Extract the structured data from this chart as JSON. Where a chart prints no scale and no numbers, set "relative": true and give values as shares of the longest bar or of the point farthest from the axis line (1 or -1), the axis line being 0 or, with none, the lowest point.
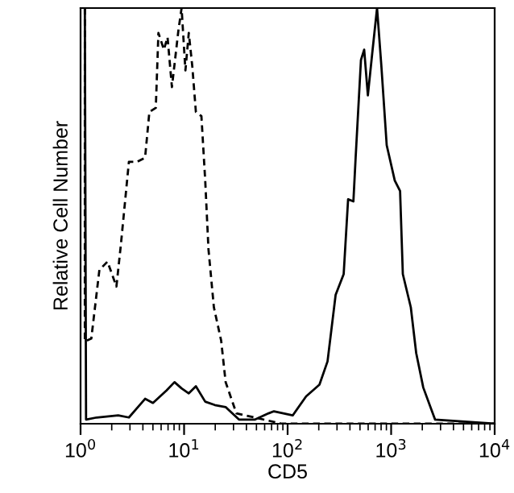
{
  "chart_data": {
    "type": "line",
    "xlabel": "CD5",
    "ylabel": "Relative Cell Number",
    "relative": true,
    "log": "x",
    "grid": false,
    "marker": "none",
    "xlim": [
      1,
      10000
    ],
    "xticks": [
      {
        "value": 1,
        "label": "10$^{0}$"
      },
      {
        "value": 10,
        "label": "10$^{1}$"
      },
      {
        "value": 100,
        "label": "10$^{2}$"
      },
      {
        "value": 1000,
        "label": "10$^{3}$"
      },
      {
        "value": 10000,
        "label": "10$^{4}$"
      }
    ],
    "series": [
      {
        "color": "#000000",
        "line_style": "dashed",
        "x": [
          1.1,
          1.1,
          1.27,
          1.52,
          1.82,
          2.22,
          2.45,
          2.93,
          3.51,
          4.2,
          4.62,
          5.33,
          5.65,
          6.38,
          6.92,
          7.63,
          8.8,
          9.46,
          10.3,
          11.1,
          12.0,
          13.0,
          14.7,
          16.0,
          17.2,
          19.4,
          22.8,
          25.2,
          32.0,
          88,
          10000
        ],
        "values": [
          1.0,
          0.198,
          0.205,
          0.37,
          0.39,
          0.33,
          0.43,
          0.63,
          0.63,
          0.64,
          0.75,
          0.76,
          0.94,
          0.9,
          0.93,
          0.81,
          0.945,
          1.0,
          0.85,
          0.94,
          0.86,
          0.75,
          0.74,
          0.585,
          0.42,
          0.28,
          0.2,
          0.1,
          0.025,
          0,
          0
        ]
      },
      {
        "color": "#000000",
        "line_style": "solid",
        "x": [
          1.1,
          1.13,
          1.43,
          2.31,
          2.93,
          4.2,
          5.0,
          6.76,
          8.08,
          9.46,
          11.1,
          13.0,
          16.0,
          19.8,
          25.2,
          33.9,
          48.5,
          65.5,
          73.8,
          112,
          151,
          203,
          243,
          291,
          348,
          384,
          432,
          454,
          511,
          549,
          596,
          656,
          731,
          805,
          906,
          1084,
          1220,
          1297,
          1549,
          1746,
          2044,
          2655,
          10000
        ],
        "values": [
          1.0,
          0.01,
          0.015,
          0.02,
          0.015,
          0.06,
          0.05,
          0.08,
          0.1,
          0.085,
          0.073,
          0.09,
          0.053,
          0.045,
          0.04,
          0.01,
          0.01,
          0.025,
          0.03,
          0.02,
          0.066,
          0.094,
          0.15,
          0.31,
          0.36,
          0.54,
          0.535,
          0.64,
          0.875,
          0.9,
          0.79,
          0.89,
          1.0,
          0.86,
          0.67,
          0.585,
          0.56,
          0.36,
          0.28,
          0.17,
          0.087,
          0.01,
          0
        ]
      }
    ]
  }
}
